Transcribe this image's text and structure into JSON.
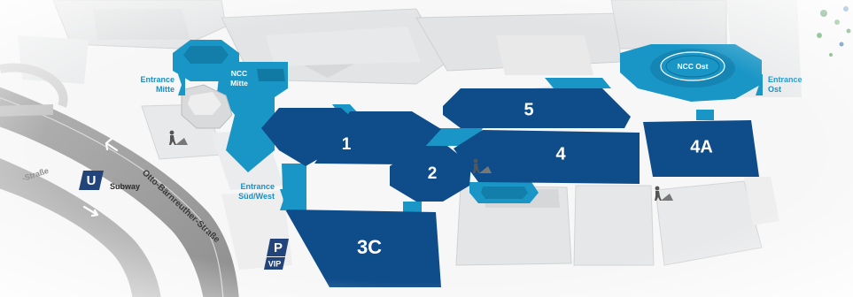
{
  "halls": {
    "h1": "1",
    "h2": "2",
    "h3c": "3C",
    "h4": "4",
    "h4a": "4A",
    "h5": "5"
  },
  "ncc": {
    "mitte": [
      "NCC",
      "Mitte"
    ],
    "ost": "NCC Ost"
  },
  "entrances": {
    "mitte": [
      "Entrance",
      "Mitte"
    ],
    "ost": [
      "Entrance",
      "Ost"
    ],
    "sued_west": [
      "Entrance",
      "Süd/West"
    ]
  },
  "streets": {
    "main": "Otto-Bärnreuther-Straße",
    "side": "-Straße"
  },
  "subway": {
    "letter": "U",
    "label": "Subway"
  },
  "parking": {
    "letter": "P",
    "label": "VIP"
  },
  "colors": {
    "hall_blue": "#0f4c8a",
    "ncc_teal": "#1a96c6",
    "building_gray": "#e4e5e6",
    "road_gray": "#9b9b9b",
    "entrance_text": "#1a8fc4"
  },
  "icons": {
    "construction": "construction-worker-icon",
    "arrow": "arrow-icon"
  }
}
